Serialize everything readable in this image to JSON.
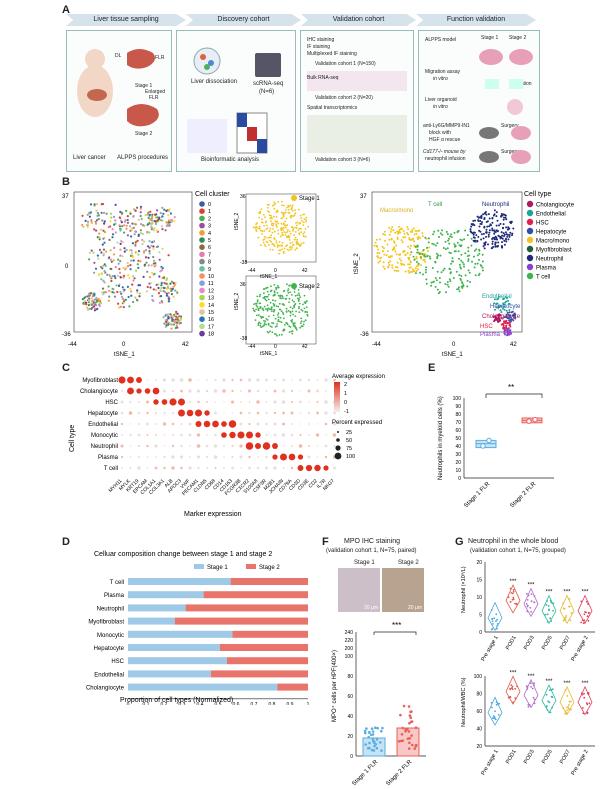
{
  "panel_letters": {
    "a": "A",
    "b": "B",
    "c": "C",
    "d": "D",
    "e": "E",
    "f": "F",
    "g": "G"
  },
  "panelA": {
    "steps": [
      "Liver tissue sampling",
      "Discovery cohort",
      "Validation cohort",
      "Function validation"
    ],
    "sampling": {
      "dl": "DL",
      "flr": "FLR",
      "stage1": "Stage 1",
      "enlarged": "Enlarged",
      "flr2": "FLR",
      "stage2": "Stage 2",
      "liver_cancer": "Liver cancer",
      "alpps": "ALPPS procedures"
    },
    "discovery": {
      "dissociation": "Liver dissociation",
      "scrna": "scRNA-seq",
      "n": "(N=6)",
      "bioinf": "Bioinformatic analysis"
    },
    "validation": {
      "ihc": "IHC staining",
      "if": "IF staining",
      "multi": "Multiplexed IF staining",
      "vc1": "Validation cohort 1 (N=150)",
      "bulk": "Bulk RNA-seq",
      "vc2": "Validation cohort 2 (N=20)",
      "spatial": "Spatial transcriptomics",
      "vc3": "Validation cohort 3 (N=6)"
    },
    "function": {
      "alpps_model": "ALPPS model",
      "mig1": "Migration assay",
      "mig2": "in vitro",
      "organoid1": "Liver organoid",
      "organoid2": "in vitro",
      "anti1": "anti-Ly6G/MMP9-IN1",
      "anti2": "block with",
      "anti3": "HGF α rescue",
      "cd1": "Cd177-/- mouse by",
      "cd2": "neutrophil infusion",
      "stage1": "Stage 1",
      "stage2": "Stage 2",
      "surgery": "Surgery",
      "migration": "Migration"
    }
  },
  "panelB": {
    "cluster_title": "Cell cluster",
    "clusters": [
      "0",
      "1",
      "2",
      "3",
      "4",
      "5",
      "6",
      "7",
      "8",
      "9",
      "10",
      "11",
      "12",
      "13",
      "14",
      "15",
      "16",
      "17",
      "18"
    ],
    "cluster_colors": [
      "#3b5ba5",
      "#e0402f",
      "#4db04a",
      "#9a4ea0",
      "#f0a030",
      "#2e8b57",
      "#8a6d3b",
      "#e07fb0",
      "#888888",
      "#66c2a5",
      "#fc8d62",
      "#8da0cb",
      "#e78ac3",
      "#a6d854",
      "#ffd92f",
      "#e5c494",
      "#1f78b4",
      "#b2df8a",
      "#6a3d9a"
    ],
    "axis": {
      "y": "tSNE_2",
      "x": "tSNE_1",
      "xmin": "-44",
      "xmid": "0",
      "xmax": "42",
      "ymax": "37",
      "ymid": "0",
      "ymin": "-36",
      "ymax2": "36",
      "ymin2": "-38"
    },
    "stage1": "Stage 1",
    "stage2": "Stage 2",
    "celltype_title": "Cell type",
    "celltypes": [
      {
        "name": "Cholangiocyte",
        "color": "#b0185f"
      },
      {
        "name": "Endothelial",
        "color": "#1aa39a"
      },
      {
        "name": "HSC",
        "color": "#e0204d"
      },
      {
        "name": "Hepatocyte",
        "color": "#2d4fa8"
      },
      {
        "name": "Macro/mono",
        "color": "#f2c41d"
      },
      {
        "name": "Myofibroblast",
        "color": "#1e5e3a"
      },
      {
        "name": "Neutrophil",
        "color": "#1e2a78"
      },
      {
        "name": "Plasma",
        "color": "#8a3fd1"
      },
      {
        "name": "T cell",
        "color": "#3fb34f"
      }
    ],
    "annot": {
      "macro": "Macro/mono",
      "tcell": "T cell",
      "neutro": "Neutrophil",
      "endo": "Endothelial",
      "hep": "Hepatocyte",
      "chol": "Cholangiocyte",
      "hsc": "HSC",
      "plasma": "Plasma"
    }
  },
  "panelC": {
    "ylabel": "Cell type",
    "xlabel": "Marker expression",
    "rows": [
      "Myofibroblast",
      "Cholangiocyte",
      "HSC",
      "Hepatocyte",
      "Endothelial",
      "Monocytic",
      "Neutrophil",
      "Plasma",
      "T cell"
    ],
    "markers": [
      "MYH11",
      "MYLK",
      "KRT19",
      "EPCAM",
      "COL1A1",
      "COL3A1",
      "ALB",
      "APOC3",
      "VWF",
      "PECAM1",
      "CLDN5",
      "CD68",
      "CD14",
      "CD163",
      "FCGR3B",
      "CXCR2",
      "S100A8",
      "CSF3R",
      "MZB1",
      "JCHAIN",
      "CD79A",
      "CD3D",
      "CD3E",
      "CD2",
      "IL7R",
      "NKG7"
    ],
    "legend": {
      "avg": "Average expression",
      "pct": "Percent expressed",
      "ticks": [
        "2",
        "1",
        "0",
        "-1"
      ],
      "sizes": [
        "25",
        "50",
        "75",
        "100"
      ]
    }
  },
  "panelD": {
    "chart_data": {
      "type": "bar",
      "title": "Celluar composition change between stage 1 and stage 2",
      "categories": [
        "T cell",
        "Plasma",
        "Neutrophil",
        "Myofibroblast",
        "Monocytic",
        "Hepatocyte",
        "HSC",
        "Endothelial",
        "Cholangiocyte"
      ],
      "series": [
        {
          "name": "Stage 1",
          "color": "#9ecae8",
          "values": [
            0.57,
            0.42,
            0.32,
            0.26,
            0.58,
            0.51,
            0.55,
            0.46,
            0.83
          ]
        },
        {
          "name": "Stage 2",
          "color": "#e8756b",
          "values": [
            0.43,
            0.58,
            0.68,
            0.74,
            0.42,
            0.49,
            0.45,
            0.54,
            0.17
          ]
        }
      ],
      "xlabel": "Proportion of cell types (Normalized)",
      "xticks": [
        "0",
        "0.1",
        "0.2",
        "0.3",
        "0.4",
        "0.5",
        "0.6",
        "0.7",
        "0.8",
        "0.9",
        "1"
      ],
      "xlim": [
        0,
        1
      ]
    }
  },
  "panelE": {
    "chart_data": {
      "type": "box",
      "ylabel": "Neutrophils in myeloid cells (%)",
      "categories": [
        "Stage 1 FLR",
        "Stage 2 FLR"
      ],
      "medians": [
        43,
        72
      ],
      "q1": [
        38,
        69
      ],
      "q3": [
        47,
        75
      ],
      "points": [
        [
          40,
          47
        ],
        [
          71,
          73
        ]
      ],
      "yticks": [
        "0",
        "10",
        "20",
        "30",
        "40",
        "50",
        "60",
        "70",
        "80",
        "90",
        "100"
      ],
      "ylim": [
        0,
        100
      ],
      "sig": "**"
    }
  },
  "panelF": {
    "title1": "MPO IHC staining",
    "title2": "(validation cohort 1, N=75, paired)",
    "stage1": "Stage 1",
    "stage2": "Stage 2",
    "scale": "20 μm",
    "chart_data": {
      "type": "bar",
      "ylabel": "MPO⁺ cells per HPF(400×)",
      "categories": [
        "Stage 1 FLR",
        "Stage 2 FLR"
      ],
      "values": [
        18,
        28
      ],
      "yticks_low": [
        "0",
        "20",
        "40",
        "60",
        "80",
        "100"
      ],
      "yticks_high": [
        "200",
        "220",
        "240"
      ],
      "sig": "***"
    }
  },
  "panelG": {
    "title1": "Neutrophil in the whole blood",
    "title2": "(validation cohort 1, N=75, grouped)",
    "chart_data": [
      {
        "type": "violin",
        "ylabel": "Neutrophil (×10⁹/L)",
        "categories": [
          "Pre stage 1",
          "POD1",
          "POD3",
          "POD5",
          "POD7",
          "Pre stage 2"
        ],
        "medians": [
          4,
          9,
          8,
          6,
          6,
          6
        ],
        "ymax": 20,
        "yticks": [
          "0",
          "5",
          "10",
          "15",
          "20"
        ],
        "sig": [
          "",
          "***",
          "***",
          "***",
          "***",
          "***"
        ],
        "colors": [
          "#4aa8e0",
          "#e05a48",
          "#b06ac8",
          "#2bb8a0",
          "#e8b830",
          "#e0405a"
        ]
      },
      {
        "type": "violin",
        "ylabel": "Neutrophil/WBC (%)",
        "categories": [
          "Pre stage 1",
          "POD1",
          "POD3",
          "POD5",
          "POD7",
          "Pre stage 2"
        ],
        "medians": [
          58,
          82,
          78,
          72,
          70,
          70
        ],
        "ymax": 100,
        "yticks": [
          "20",
          "40",
          "60",
          "80",
          "100"
        ],
        "sig": [
          "",
          "***",
          "***",
          "***",
          "***",
          "***"
        ],
        "colors": [
          "#4aa8e0",
          "#e05a48",
          "#b06ac8",
          "#2bb8a0",
          "#e8b830",
          "#e0405a"
        ]
      }
    ]
  }
}
